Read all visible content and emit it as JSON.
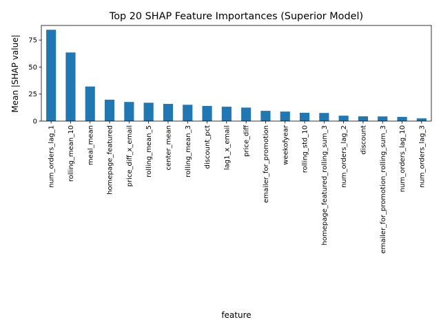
{
  "chart_data": {
    "type": "bar",
    "title": "Top 20 SHAP Feature Importances (Superior Model)",
    "xlabel": "feature",
    "ylabel": "Mean |SHAP value|",
    "ylim": [
      0,
      88.5
    ],
    "yticks": [
      0,
      25,
      50,
      75
    ],
    "grid": false,
    "bar_color": "#1f77b4",
    "categories": [
      "num_orders_lag_1",
      "rolling_mean_10",
      "meal_mean",
      "homepage_featured",
      "price_diff_x_email",
      "rolling_mean_5",
      "center_mean",
      "rolling_mean_3",
      "discount_pct",
      "lag1_x_email",
      "price_diff",
      "emailer_for_promotion",
      "weekofyear",
      "rolling_std_10",
      "homepage_featured_rolling_sum_3",
      "num_orders_lag_2",
      "discount",
      "emailer_for_promotion_rolling_sum_3",
      "num_orders_lag_10",
      "num_orders_lag_3"
    ],
    "values": [
      84.5,
      63.5,
      32.0,
      19.8,
      17.7,
      17.0,
      15.9,
      15.1,
      14.0,
      13.3,
      12.5,
      9.5,
      8.8,
      7.7,
      7.5,
      5.0,
      4.4,
      4.3,
      3.9,
      2.5
    ]
  }
}
